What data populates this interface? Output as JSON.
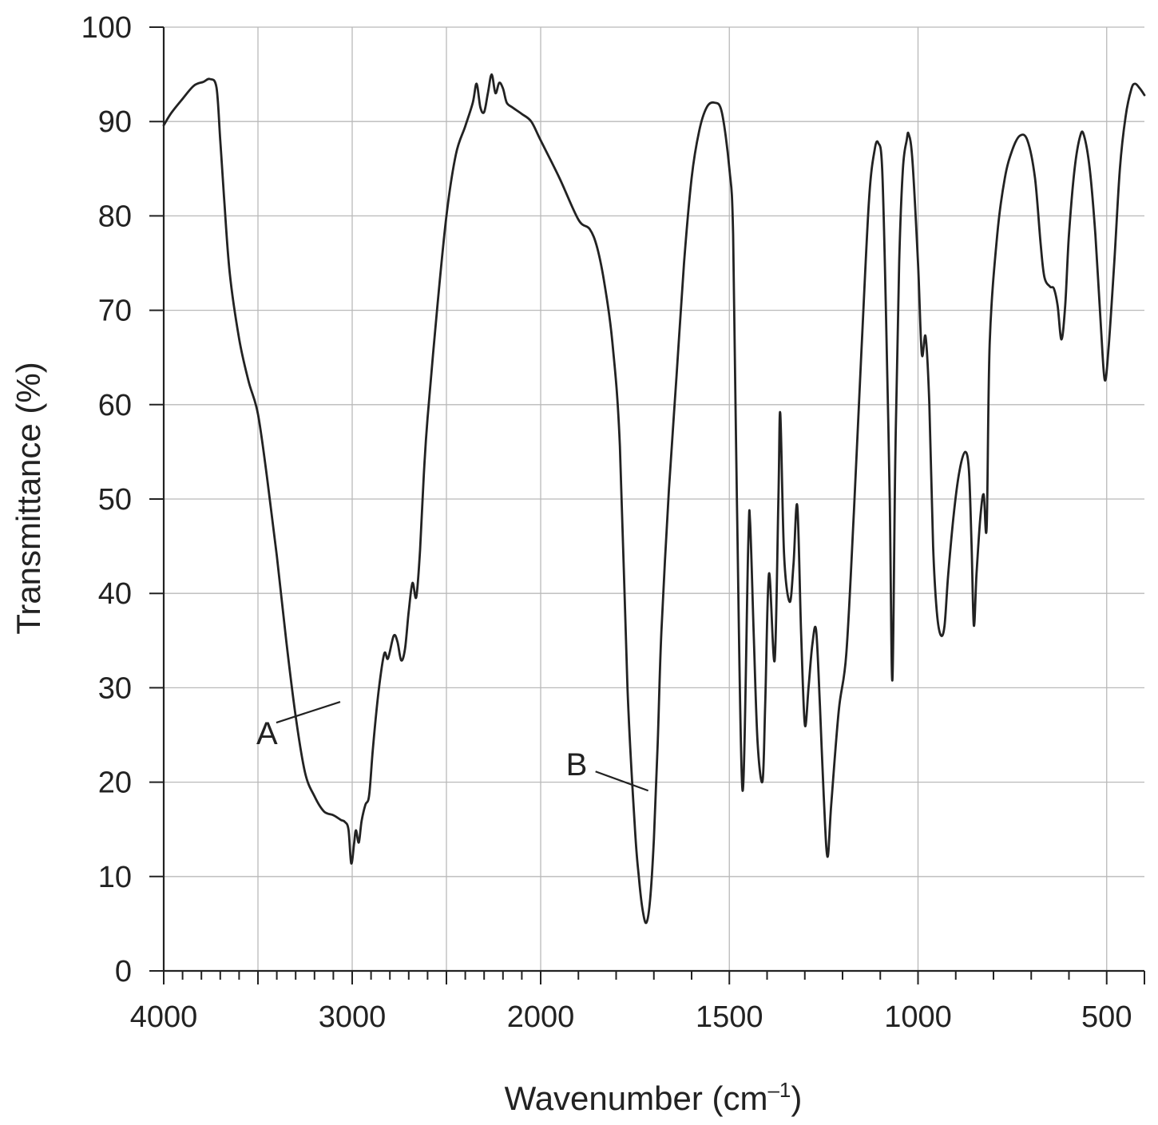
{
  "chart_data": {
    "type": "line",
    "title": "",
    "xlabel": "Wavenumber (cm",
    "xlabel_superscript": "–1",
    "xlabel_close": ")",
    "ylabel": "Transmittance (%)",
    "xlim": [
      4000,
      400
    ],
    "ylim": [
      0,
      100
    ],
    "grid": true,
    "x_axis_segments": [
      {
        "from": 4000,
        "to": 2000,
        "major_step": 500,
        "minor_step": 100
      },
      {
        "from": 2000,
        "to": 400,
        "major_step": 500,
        "minor_step": 100
      }
    ],
    "x_ticks": [
      {
        "value": 4000,
        "label": "4000"
      },
      {
        "value": 3000,
        "label": "3000"
      },
      {
        "value": 2000,
        "label": "2000"
      },
      {
        "value": 1500,
        "label": "1500"
      },
      {
        "value": 1000,
        "label": "1000"
      },
      {
        "value": 500,
        "label": "500"
      }
    ],
    "x_grid_values": [
      4000,
      3500,
      3000,
      2500,
      2000,
      1500,
      1000,
      500
    ],
    "y_ticks": [
      {
        "value": 0,
        "label": "0"
      },
      {
        "value": 10,
        "label": "10"
      },
      {
        "value": 20,
        "label": "20"
      },
      {
        "value": 30,
        "label": "30"
      },
      {
        "value": 40,
        "label": "40"
      },
      {
        "value": 50,
        "label": "50"
      },
      {
        "value": 60,
        "label": "60"
      },
      {
        "value": 70,
        "label": "70"
      },
      {
        "value": 80,
        "label": "80"
      },
      {
        "value": 90,
        "label": "90"
      },
      {
        "value": 100,
        "label": "100"
      }
    ],
    "series": [
      {
        "points": [
          [
            4000,
            89.6
          ],
          [
            3960,
            90.9
          ],
          [
            3900,
            92.4
          ],
          [
            3840,
            93.8
          ],
          [
            3790,
            94.2
          ],
          [
            3755,
            94.5
          ],
          [
            3720,
            93.6
          ],
          [
            3700,
            88.0
          ],
          [
            3680,
            82.0
          ],
          [
            3650,
            74.0
          ],
          [
            3600,
            67.0
          ],
          [
            3550,
            62.5
          ],
          [
            3500,
            59.0
          ],
          [
            3450,
            52.0
          ],
          [
            3400,
            44.0
          ],
          [
            3350,
            35.0
          ],
          [
            3300,
            27.0
          ],
          [
            3250,
            21.0
          ],
          [
            3200,
            18.5
          ],
          [
            3150,
            16.9
          ],
          [
            3100,
            16.5
          ],
          [
            3060,
            16.0
          ],
          [
            3040,
            15.8
          ],
          [
            3020,
            15.0
          ],
          [
            3005,
            11.4
          ],
          [
            2990,
            13.5
          ],
          [
            2980,
            14.9
          ],
          [
            2965,
            13.6
          ],
          [
            2950,
            15.9
          ],
          [
            2930,
            17.6
          ],
          [
            2910,
            18.6
          ],
          [
            2890,
            23.6
          ],
          [
            2860,
            29.6
          ],
          [
            2830,
            33.6
          ],
          [
            2810,
            33.1
          ],
          [
            2780,
            35.5
          ],
          [
            2760,
            34.9
          ],
          [
            2740,
            32.9
          ],
          [
            2720,
            34.1
          ],
          [
            2700,
            38.1
          ],
          [
            2680,
            41.1
          ],
          [
            2660,
            39.6
          ],
          [
            2640,
            44.6
          ],
          [
            2620,
            52.6
          ],
          [
            2600,
            58.6
          ],
          [
            2550,
            70.0
          ],
          [
            2500,
            80.0
          ],
          [
            2450,
            86.5
          ],
          [
            2400,
            89.5
          ],
          [
            2360,
            92.0
          ],
          [
            2340,
            94.0
          ],
          [
            2320,
            91.5
          ],
          [
            2300,
            91.0
          ],
          [
            2280,
            93.0
          ],
          [
            2260,
            95.0
          ],
          [
            2240,
            93.0
          ],
          [
            2220,
            94.1
          ],
          [
            2200,
            93.5
          ],
          [
            2180,
            92.0
          ],
          [
            2150,
            91.5
          ],
          [
            2100,
            90.8
          ],
          [
            2050,
            90.0
          ],
          [
            2000,
            88.0
          ],
          [
            1950,
            84.0
          ],
          [
            1900,
            79.6
          ],
          [
            1870,
            78.6
          ],
          [
            1850,
            76.6
          ],
          [
            1830,
            72.6
          ],
          [
            1810,
            66.6
          ],
          [
            1790,
            55.6
          ],
          [
            1770,
            30.0
          ],
          [
            1750,
            15.0
          ],
          [
            1740,
            10.0
          ],
          [
            1730,
            6.5
          ],
          [
            1720,
            5.1
          ],
          [
            1710,
            7.5
          ],
          [
            1700,
            14.0
          ],
          [
            1690,
            24.0
          ],
          [
            1680,
            36.0
          ],
          [
            1660,
            51.0
          ],
          [
            1640,
            63.0
          ],
          [
            1620,
            75.0
          ],
          [
            1600,
            84.0
          ],
          [
            1580,
            89.0
          ],
          [
            1560,
            91.5
          ],
          [
            1540,
            92.0
          ],
          [
            1520,
            91.0
          ],
          [
            1500,
            85.0
          ],
          [
            1490,
            78.0
          ],
          [
            1480,
            50.0
          ],
          [
            1465,
            19.1
          ],
          [
            1450,
            45.1
          ],
          [
            1445,
            47.6
          ],
          [
            1435,
            35.1
          ],
          [
            1425,
            24.1
          ],
          [
            1412,
            20.1
          ],
          [
            1405,
            28.1
          ],
          [
            1395,
            42.1
          ],
          [
            1380,
            32.9
          ],
          [
            1370,
            50.1
          ],
          [
            1365,
            59.1
          ],
          [
            1355,
            44.1
          ],
          [
            1340,
            39.1
          ],
          [
            1330,
            43.1
          ],
          [
            1320,
            49.3
          ],
          [
            1310,
            36.1
          ],
          [
            1300,
            26.1
          ],
          [
            1290,
            30.1
          ],
          [
            1280,
            34.6
          ],
          [
            1270,
            36.1
          ],
          [
            1260,
            28.1
          ],
          [
            1250,
            18.6
          ],
          [
            1240,
            12.1
          ],
          [
            1230,
            17.6
          ],
          [
            1210,
            27.6
          ],
          [
            1190,
            33.6
          ],
          [
            1170,
            48.6
          ],
          [
            1150,
            65.6
          ],
          [
            1130,
            81.6
          ],
          [
            1115,
            87.0
          ],
          [
            1105,
            87.7
          ],
          [
            1095,
            85.0
          ],
          [
            1085,
            70.0
          ],
          [
            1075,
            50.0
          ],
          [
            1068,
            30.8
          ],
          [
            1060,
            55.0
          ],
          [
            1050,
            75.0
          ],
          [
            1040,
            85.0
          ],
          [
            1030,
            88.0
          ],
          [
            1025,
            88.7
          ],
          [
            1015,
            86.0
          ],
          [
            1000,
            75.0
          ],
          [
            990,
            65.4
          ],
          [
            980,
            67.2
          ],
          [
            970,
            60.0
          ],
          [
            960,
            45.0
          ],
          [
            950,
            38.0
          ],
          [
            940,
            35.6
          ],
          [
            930,
            36.5
          ],
          [
            920,
            42.0
          ],
          [
            905,
            48.5
          ],
          [
            890,
            53.0
          ],
          [
            875,
            55.0
          ],
          [
            865,
            53.0
          ],
          [
            858,
            45.0
          ],
          [
            852,
            36.6
          ],
          [
            845,
            42.0
          ],
          [
            835,
            48.0
          ],
          [
            826,
            50.5
          ],
          [
            818,
            47.1
          ],
          [
            810,
            66.6
          ],
          [
            790,
            78.0
          ],
          [
            770,
            84.0
          ],
          [
            750,
            87.0
          ],
          [
            730,
            88.5
          ],
          [
            710,
            88.0
          ],
          [
            690,
            84.0
          ],
          [
            675,
            77.0
          ],
          [
            665,
            73.5
          ],
          [
            650,
            72.5
          ],
          [
            640,
            72.3
          ],
          [
            630,
            70.5
          ],
          [
            620,
            66.9
          ],
          [
            610,
            70.5
          ],
          [
            600,
            78.0
          ],
          [
            585,
            85.0
          ],
          [
            570,
            88.5
          ],
          [
            560,
            88.5
          ],
          [
            545,
            85.0
          ],
          [
            530,
            78.0
          ],
          [
            515,
            68.0
          ],
          [
            505,
            62.6
          ],
          [
            495,
            66.0
          ],
          [
            480,
            75.0
          ],
          [
            465,
            85.0
          ],
          [
            450,
            90.5
          ],
          [
            435,
            93.4
          ],
          [
            425,
            94.0
          ],
          [
            412,
            93.5
          ],
          [
            400,
            92.8
          ]
        ]
      }
    ],
    "annotations": [
      {
        "label": "A",
        "x": 3140,
        "y": 28.0
      },
      {
        "label": "B",
        "x": 1715,
        "y": 19.1
      }
    ]
  }
}
